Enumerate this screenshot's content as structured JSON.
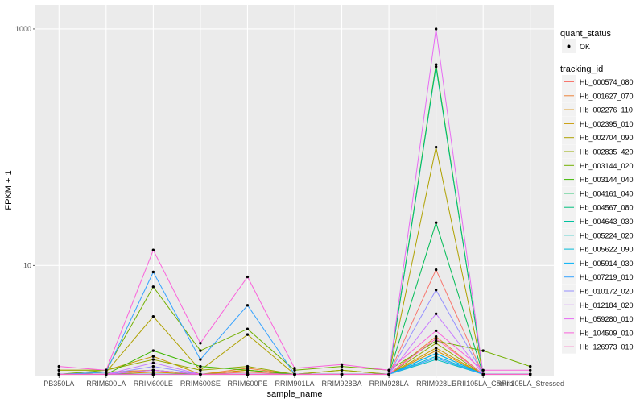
{
  "chart_data": {
    "type": "line",
    "title": "",
    "xlabel": "sample_name",
    "ylabel": "FPKM + 1",
    "yscale": "log10",
    "ylim": [
      1.17,
      1600
    ],
    "yticks": [
      {
        "value": 10,
        "label": "10"
      },
      {
        "value": 1000,
        "label": "1000"
      }
    ],
    "categories": [
      "PB350LA",
      "RRIM600LA",
      "RRIM600LE",
      "RRIM600SE",
      "RRIM600PE",
      "RRIM901LA",
      "RRIM928BA",
      "RRIM928LA",
      "RRIM928LE",
      "RRII105LA_Control",
      "RRII105LA_Stressed"
    ],
    "point_legend": {
      "title": "quant_status",
      "label": "OK"
    },
    "legend_title": "tracking_id",
    "series": [
      {
        "name": "Hb_000574_080",
        "color": "#F8766D",
        "values": [
          1.2,
          1.25,
          1.3,
          1.2,
          1.25,
          1.2,
          1.2,
          1.2,
          9.2,
          1.2,
          1.2
        ]
      },
      {
        "name": "Hb_001627_070",
        "color": "#EC8239",
        "values": [
          1.2,
          1.25,
          1.3,
          1.2,
          1.35,
          1.2,
          1.2,
          1.2,
          2.5,
          1.2,
          1.2
        ]
      },
      {
        "name": "Hb_002276_110",
        "color": "#DB8E00",
        "values": [
          1.2,
          1.2,
          1.25,
          1.2,
          1.3,
          1.2,
          1.2,
          1.2,
          1.9,
          1.2,
          1.2
        ]
      },
      {
        "name": "Hb_002395_010",
        "color": "#C79800",
        "values": [
          1.3,
          1.3,
          1.7,
          1.2,
          1.3,
          1.2,
          1.3,
          1.2,
          2.0,
          1.2,
          1.2
        ]
      },
      {
        "name": "Hb_002704_090",
        "color": "#AFA100",
        "values": [
          1.2,
          1.25,
          3.7,
          1.3,
          2.6,
          1.2,
          1.2,
          1.2,
          100,
          1.2,
          1.2
        ]
      },
      {
        "name": "Hb_002835_420",
        "color": "#94A900",
        "values": [
          1.3,
          1.3,
          1.6,
          1.3,
          1.4,
          1.2,
          1.3,
          1.2,
          2.2,
          1.2,
          1.2
        ]
      },
      {
        "name": "Hb_003144_020",
        "color": "#72B000",
        "values": [
          1.2,
          1.3,
          6.6,
          1.9,
          2.9,
          1.3,
          1.4,
          1.3,
          2.3,
          1.9,
          1.4
        ]
      },
      {
        "name": "Hb_003144_040",
        "color": "#3DB700",
        "values": [
          1.2,
          1.2,
          1.9,
          1.4,
          1.3,
          1.2,
          1.2,
          1.2,
          500,
          1.2,
          1.2
        ]
      },
      {
        "name": "Hb_004161_040",
        "color": "#00BC56",
        "values": [
          1.2,
          1.2,
          1.2,
          1.2,
          1.2,
          1.2,
          1.2,
          1.2,
          23,
          1.2,
          1.2
        ]
      },
      {
        "name": "Hb_004567_080",
        "color": "#00BF7D",
        "values": [
          1.2,
          1.2,
          1.3,
          1.2,
          1.2,
          1.2,
          1.2,
          1.2,
          480,
          1.2,
          1.2
        ]
      },
      {
        "name": "Hb_004643_030",
        "color": "#00C19F",
        "values": [
          1.2,
          1.2,
          1.2,
          1.2,
          1.2,
          1.2,
          1.2,
          1.2,
          1.8,
          1.2,
          1.2
        ]
      },
      {
        "name": "Hb_005224_020",
        "color": "#00BFBE",
        "values": [
          1.2,
          1.2,
          1.2,
          1.2,
          1.2,
          1.2,
          1.2,
          1.2,
          1.6,
          1.2,
          1.2
        ]
      },
      {
        "name": "Hb_005622_090",
        "color": "#00BAD8",
        "values": [
          1.2,
          1.2,
          1.2,
          1.2,
          1.2,
          1.2,
          1.2,
          1.2,
          1.7,
          1.2,
          1.2
        ]
      },
      {
        "name": "Hb_005914_030",
        "color": "#00B0F6",
        "values": [
          1.2,
          1.2,
          1.2,
          1.2,
          1.2,
          1.2,
          1.2,
          1.2,
          1.8,
          1.2,
          1.2
        ]
      },
      {
        "name": "Hb_007219_010",
        "color": "#35A2FF",
        "values": [
          1.2,
          1.25,
          8.8,
          1.6,
          4.6,
          1.2,
          1.2,
          1.2,
          1.65,
          1.2,
          1.2
        ]
      },
      {
        "name": "Hb_010172_020",
        "color": "#9590FF",
        "values": [
          1.2,
          1.2,
          1.4,
          1.2,
          1.2,
          1.2,
          1.2,
          1.2,
          6.2,
          1.2,
          1.2
        ]
      },
      {
        "name": "Hb_012184_020",
        "color": "#C77CFF",
        "values": [
          1.2,
          1.2,
          1.5,
          1.2,
          1.2,
          1.2,
          1.2,
          1.2,
          3.9,
          1.2,
          1.2
        ]
      },
      {
        "name": "Hb_059280_010",
        "color": "#E76BF3",
        "values": [
          1.2,
          1.2,
          1.3,
          1.2,
          1.2,
          1.2,
          1.2,
          1.2,
          1000,
          1.2,
          1.2
        ]
      },
      {
        "name": "Hb_104509_010",
        "color": "#FA62DB",
        "values": [
          1.4,
          1.3,
          13.5,
          2.2,
          8.0,
          1.35,
          1.45,
          1.3,
          2.8,
          1.3,
          1.3
        ]
      },
      {
        "name": "Hb_126973_010",
        "color": "#FF62BC",
        "values": [
          1.2,
          1.2,
          1.2,
          1.2,
          1.2,
          1.2,
          1.2,
          1.2,
          2.4,
          1.2,
          1.2
        ]
      }
    ]
  }
}
